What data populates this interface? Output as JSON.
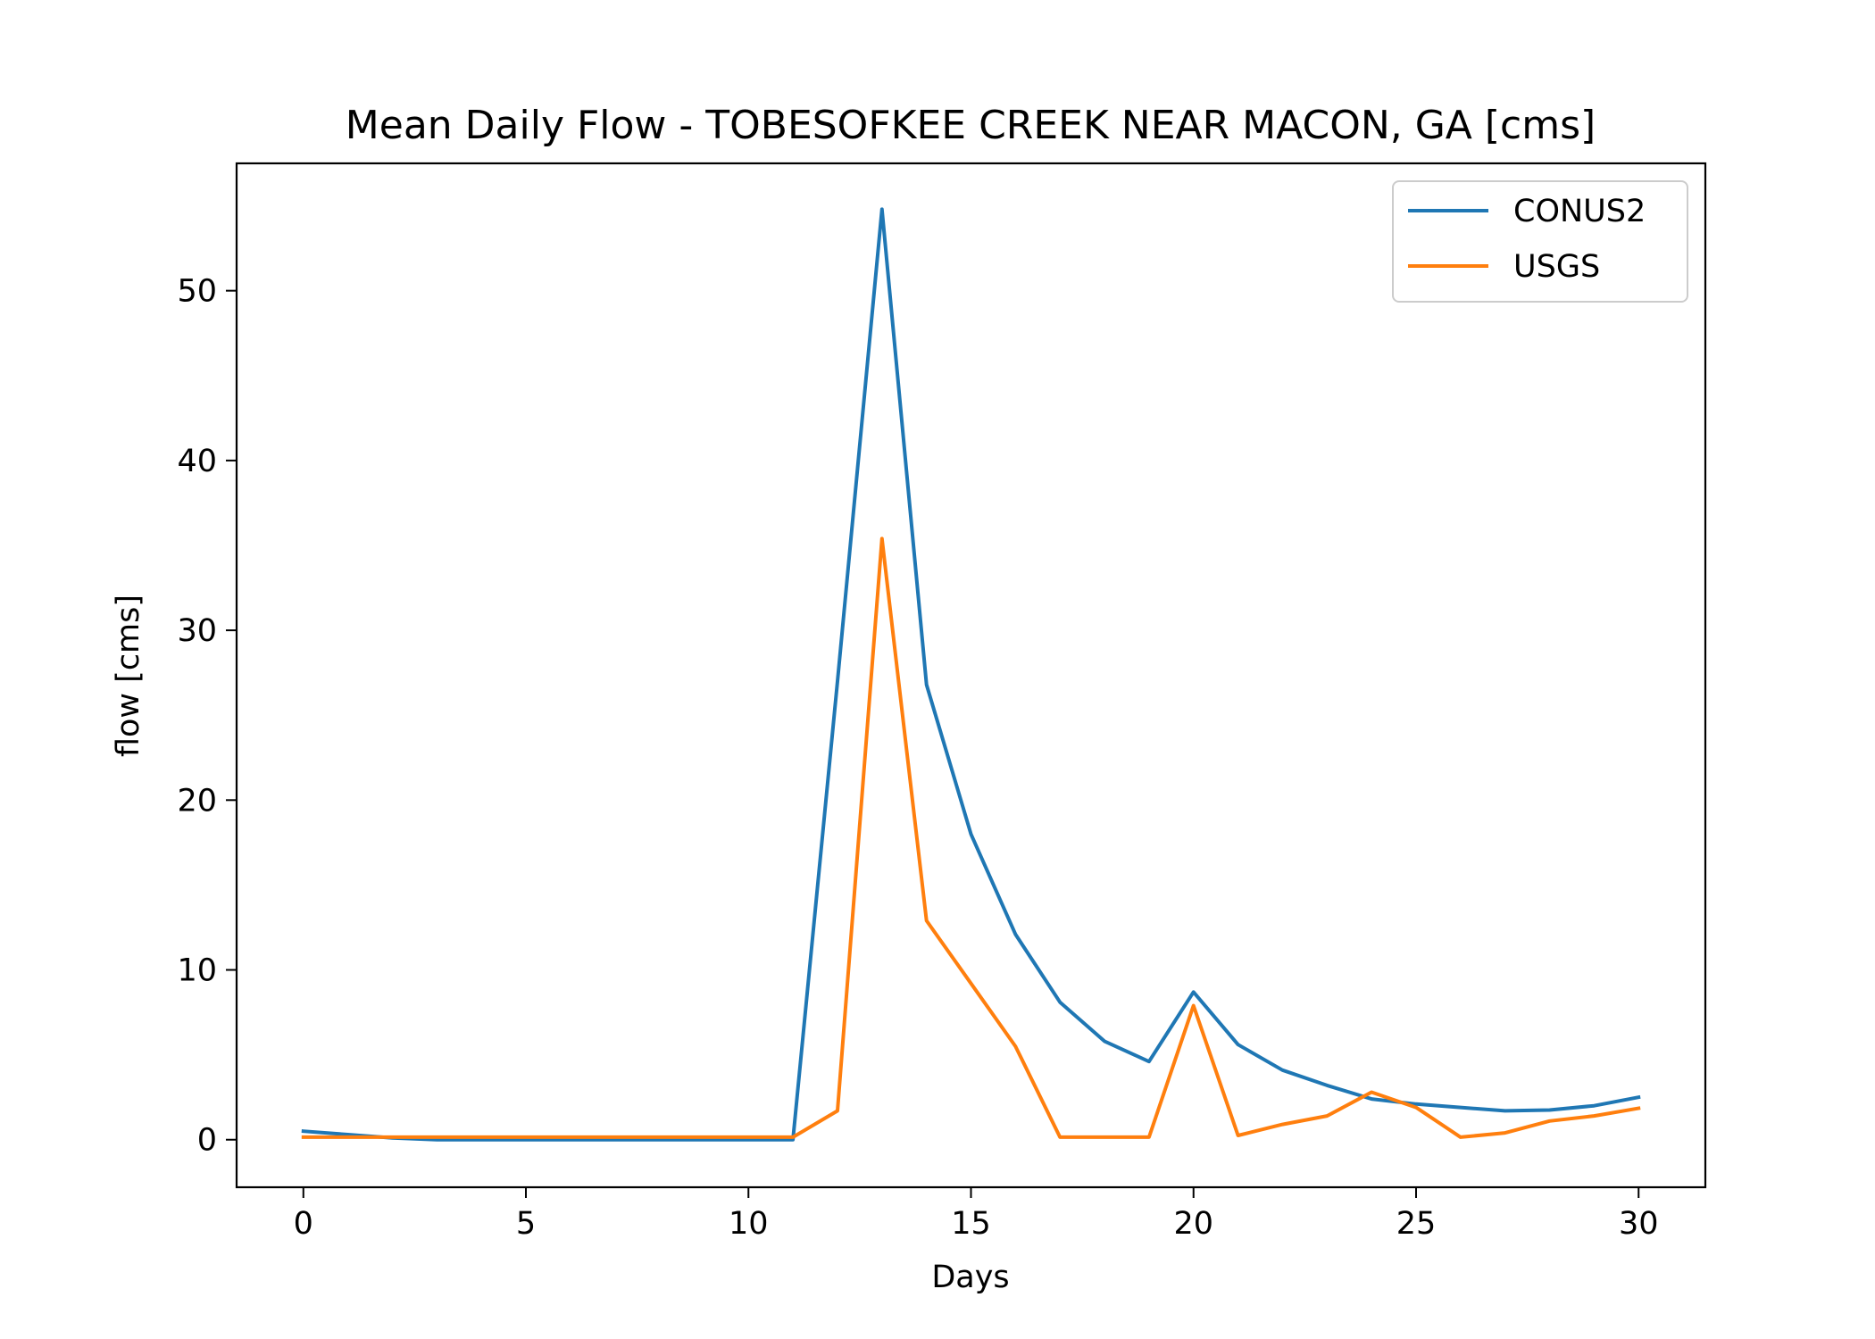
{
  "chart_data": {
    "type": "line",
    "title": "Mean Daily Flow - TOBESOFKEE CREEK NEAR MACON, GA [cms]",
    "xlabel": "Days",
    "ylabel": "flow [cms]",
    "xlim": [
      -1.5,
      31.5
    ],
    "ylim": [
      -2.8,
      57.5
    ],
    "xticks": [
      0,
      5,
      10,
      15,
      20,
      25,
      30
    ],
    "yticks": [
      0,
      10,
      20,
      30,
      40,
      50
    ],
    "grid": false,
    "legend_position": "top-right",
    "x": [
      0,
      1,
      2,
      3,
      4,
      5,
      6,
      7,
      8,
      9,
      10,
      11,
      12,
      13,
      14,
      15,
      16,
      17,
      18,
      19,
      20,
      21,
      22,
      23,
      24,
      25,
      26,
      27,
      28,
      29,
      30
    ],
    "series": [
      {
        "name": "CONUS2",
        "color": "#1f77b4",
        "values": [
          0.5,
          0.3,
          0.1,
          0.0,
          0.0,
          0.0,
          0.0,
          0.0,
          0.0,
          0.0,
          0.0,
          0.0,
          27.0,
          54.8,
          26.8,
          18.0,
          12.1,
          8.1,
          5.8,
          4.6,
          8.7,
          5.6,
          4.1,
          3.2,
          2.4,
          2.1,
          1.9,
          1.7,
          1.75,
          2.0,
          2.5
        ]
      },
      {
        "name": "USGS",
        "color": "#ff7f0e",
        "values": [
          0.15,
          0.15,
          0.15,
          0.15,
          0.15,
          0.15,
          0.15,
          0.15,
          0.15,
          0.15,
          0.15,
          0.15,
          1.7,
          35.4,
          12.9,
          9.2,
          5.5,
          0.15,
          0.15,
          0.15,
          7.9,
          0.25,
          0.9,
          1.4,
          2.8,
          1.9,
          0.15,
          0.4,
          1.1,
          1.4,
          1.85
        ]
      }
    ]
  }
}
